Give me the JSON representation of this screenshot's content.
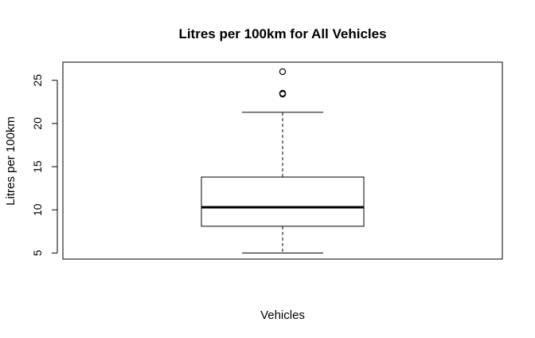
{
  "chart_data": {
    "type": "box",
    "title": "Litres per 100km for All Vehicles",
    "xlabel": "Vehicles",
    "ylabel": "Litres per 100km",
    "ylim": [
      4.3,
      27.1
    ],
    "yticks": [
      5,
      10,
      15,
      20,
      25
    ],
    "ytick_labels": [
      "5",
      "10",
      "15",
      "20",
      "25"
    ],
    "grid": false,
    "legend": "none",
    "series": [
      {
        "whisker_low": 5.0,
        "q1": 8.1,
        "median": 10.3,
        "q3": 13.8,
        "whisker_high": 21.3,
        "outliers": [
          23.4,
          23.5,
          26.0
        ]
      }
    ]
  }
}
